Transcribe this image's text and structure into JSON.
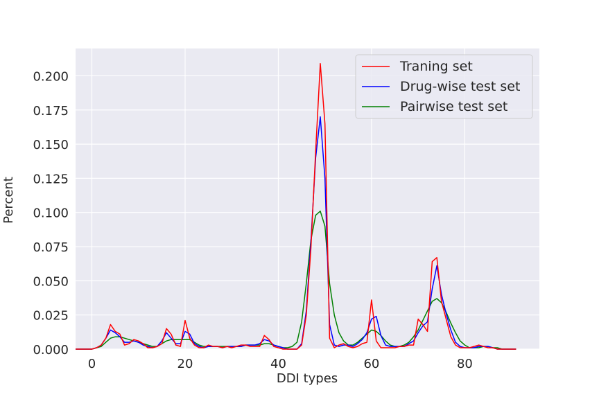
{
  "chart_data": {
    "type": "line",
    "title": "",
    "xlabel": "DDI types",
    "ylabel": "Percent",
    "xlim": [
      -3.5,
      96
    ],
    "ylim": [
      0,
      0.22
    ],
    "xticks": [
      0,
      20,
      40,
      60,
      80
    ],
    "yticks": [
      0.0,
      0.025,
      0.05,
      0.075,
      0.1,
      0.125,
      0.15,
      0.175,
      0.2
    ],
    "ytick_labels": [
      "0.000",
      "0.025",
      "0.050",
      "0.075",
      "0.100",
      "0.125",
      "0.150",
      "0.175",
      "0.200"
    ],
    "grid": true,
    "legend_position": "top-right",
    "series": [
      {
        "name": "Traning set",
        "color": "#ff0000",
        "x": [
          -3.5,
          0,
          1,
          2,
          3,
          4,
          5,
          6,
          7,
          8,
          9,
          10,
          11,
          12,
          13,
          14,
          15,
          16,
          17,
          18,
          19,
          20,
          21,
          22,
          23,
          24,
          25,
          26,
          27,
          28,
          29,
          30,
          31,
          32,
          33,
          34,
          35,
          36,
          37,
          38,
          39,
          40,
          41,
          42,
          43,
          44,
          45,
          46,
          47,
          48,
          49,
          50,
          51,
          52,
          53,
          54,
          55,
          56,
          57,
          58,
          59,
          60,
          61,
          62,
          63,
          64,
          65,
          66,
          67,
          68,
          69,
          70,
          71,
          72,
          73,
          74,
          75,
          76,
          77,
          78,
          79,
          80,
          81,
          82,
          83,
          84,
          85,
          86,
          87,
          88,
          89,
          90,
          91
        ],
        "y": [
          0.0,
          0.0,
          0.001,
          0.003,
          0.008,
          0.018,
          0.013,
          0.011,
          0.003,
          0.004,
          0.007,
          0.006,
          0.004,
          0.001,
          0.001,
          0.002,
          0.004,
          0.015,
          0.011,
          0.003,
          0.002,
          0.021,
          0.008,
          0.003,
          0.001,
          0.001,
          0.003,
          0.002,
          0.002,
          0.001,
          0.002,
          0.001,
          0.002,
          0.003,
          0.003,
          0.002,
          0.002,
          0.002,
          0.01,
          0.007,
          0.002,
          0.001,
          0.0,
          0.0,
          0.0,
          0.0,
          0.003,
          0.025,
          0.074,
          0.145,
          0.209,
          0.165,
          0.008,
          0.001,
          0.003,
          0.004,
          0.002,
          0.001,
          0.002,
          0.004,
          0.005,
          0.036,
          0.006,
          0.001,
          0.001,
          0.001,
          0.001,
          0.002,
          0.002,
          0.003,
          0.003,
          0.022,
          0.018,
          0.013,
          0.064,
          0.067,
          0.035,
          0.022,
          0.009,
          0.003,
          0.001,
          0.001,
          0.001,
          0.002,
          0.003,
          0.002,
          0.001,
          0.001,
          0.0,
          0.0,
          0.0,
          0.0,
          0.0
        ]
      },
      {
        "name": "Drug-wise test set",
        "color": "#0000ff",
        "x": [
          -3.5,
          0,
          1,
          2,
          3,
          4,
          5,
          6,
          7,
          8,
          9,
          10,
          11,
          12,
          13,
          14,
          15,
          16,
          17,
          18,
          19,
          20,
          21,
          22,
          23,
          24,
          25,
          26,
          27,
          28,
          29,
          30,
          31,
          32,
          33,
          34,
          35,
          36,
          37,
          38,
          39,
          40,
          41,
          42,
          43,
          44,
          45,
          46,
          47,
          48,
          49,
          50,
          51,
          52,
          53,
          54,
          55,
          56,
          57,
          58,
          59,
          60,
          61,
          62,
          63,
          64,
          65,
          66,
          67,
          68,
          69,
          70,
          71,
          72,
          73,
          74,
          75,
          76,
          77,
          78,
          79,
          80,
          81,
          82,
          83,
          84,
          85,
          86,
          87,
          88,
          89,
          90,
          91
        ],
        "y": [
          0.0,
          0.0,
          0.001,
          0.003,
          0.008,
          0.014,
          0.012,
          0.009,
          0.005,
          0.005,
          0.006,
          0.005,
          0.003,
          0.002,
          0.001,
          0.002,
          0.006,
          0.012,
          0.008,
          0.004,
          0.004,
          0.013,
          0.011,
          0.004,
          0.002,
          0.001,
          0.002,
          0.002,
          0.002,
          0.001,
          0.002,
          0.002,
          0.002,
          0.002,
          0.003,
          0.003,
          0.003,
          0.004,
          0.007,
          0.006,
          0.003,
          0.002,
          0.001,
          0.0,
          0.0,
          0.0,
          0.004,
          0.028,
          0.079,
          0.14,
          0.17,
          0.125,
          0.018,
          0.003,
          0.002,
          0.003,
          0.003,
          0.002,
          0.004,
          0.007,
          0.012,
          0.022,
          0.024,
          0.01,
          0.003,
          0.002,
          0.002,
          0.002,
          0.002,
          0.004,
          0.006,
          0.012,
          0.017,
          0.02,
          0.044,
          0.061,
          0.04,
          0.026,
          0.014,
          0.005,
          0.002,
          0.001,
          0.001,
          0.001,
          0.002,
          0.002,
          0.002,
          0.001,
          0.0,
          0.0,
          0.0,
          0.0,
          0.0
        ]
      },
      {
        "name": "Pairwise test set",
        "color": "#008000",
        "x": [
          -3.5,
          0,
          1,
          2,
          3,
          4,
          5,
          6,
          7,
          8,
          9,
          10,
          11,
          12,
          13,
          14,
          15,
          16,
          17,
          18,
          19,
          20,
          21,
          22,
          23,
          24,
          25,
          26,
          27,
          28,
          29,
          30,
          31,
          32,
          33,
          34,
          35,
          36,
          37,
          38,
          39,
          40,
          41,
          42,
          43,
          44,
          45,
          46,
          47,
          48,
          49,
          50,
          51,
          52,
          53,
          54,
          55,
          56,
          57,
          58,
          59,
          60,
          61,
          62,
          63,
          64,
          65,
          66,
          67,
          68,
          69,
          70,
          71,
          72,
          73,
          74,
          75,
          76,
          77,
          78,
          79,
          80,
          81,
          82,
          83,
          84,
          85,
          86,
          87,
          88,
          89,
          90,
          91
        ],
        "y": [
          0.0,
          0.0,
          0.001,
          0.002,
          0.005,
          0.008,
          0.009,
          0.009,
          0.008,
          0.007,
          0.006,
          0.005,
          0.004,
          0.003,
          0.002,
          0.002,
          0.004,
          0.006,
          0.007,
          0.007,
          0.007,
          0.007,
          0.007,
          0.005,
          0.003,
          0.002,
          0.002,
          0.002,
          0.002,
          0.002,
          0.002,
          0.002,
          0.002,
          0.002,
          0.003,
          0.003,
          0.003,
          0.003,
          0.004,
          0.004,
          0.003,
          0.002,
          0.001,
          0.001,
          0.002,
          0.005,
          0.02,
          0.048,
          0.08,
          0.098,
          0.101,
          0.09,
          0.048,
          0.025,
          0.012,
          0.006,
          0.003,
          0.003,
          0.005,
          0.008,
          0.011,
          0.014,
          0.013,
          0.01,
          0.006,
          0.003,
          0.002,
          0.002,
          0.003,
          0.005,
          0.009,
          0.014,
          0.021,
          0.028,
          0.035,
          0.037,
          0.034,
          0.027,
          0.019,
          0.012,
          0.006,
          0.003,
          0.001,
          0.001,
          0.001,
          0.002,
          0.002,
          0.001,
          0.001,
          0.0,
          0.0,
          0.0,
          0.0
        ]
      }
    ]
  }
}
